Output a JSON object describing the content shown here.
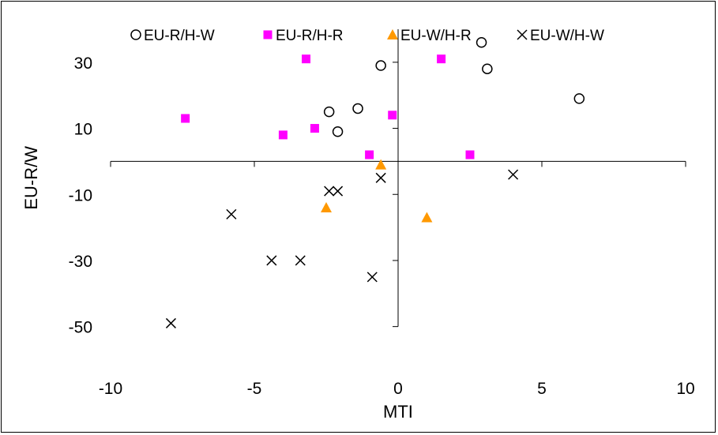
{
  "chart_data": {
    "type": "scatter",
    "title": "",
    "xlabel": "MTI",
    "ylabel": "EU-R/W",
    "xlim": [
      -10,
      10
    ],
    "ylim": [
      -50,
      40
    ],
    "x_ticks": [
      -10,
      -5,
      0,
      5,
      10
    ],
    "y_ticks": [
      30,
      10,
      -10,
      -30,
      -50
    ],
    "x_tick_labels": [
      "-10",
      "-5",
      "0",
      "5",
      "10"
    ],
    "y_tick_labels": [
      "30",
      "10",
      "-10",
      "-30",
      "-50"
    ],
    "grid": false,
    "legend_position": "top",
    "series": [
      {
        "name": "EU-R/H-W",
        "marker": "circle-open",
        "color": "#000000",
        "points": [
          [
            2.9,
            36
          ],
          [
            3.1,
            28
          ],
          [
            6.3,
            19
          ],
          [
            -0.6,
            29
          ],
          [
            -1.4,
            16
          ],
          [
            -2.4,
            15
          ],
          [
            -2.1,
            9
          ]
        ]
      },
      {
        "name": "EU-R/H-R",
        "marker": "square",
        "color": "#FF00FF",
        "points": [
          [
            -7.4,
            13
          ],
          [
            -3.2,
            31
          ],
          [
            -4,
            8
          ],
          [
            -2.9,
            10
          ],
          [
            -0.2,
            14
          ],
          [
            1.5,
            31
          ],
          [
            -1,
            2
          ],
          [
            2.5,
            2
          ]
        ]
      },
      {
        "name": "EU-W/H-R",
        "marker": "triangle",
        "color": "#FF9900",
        "points": [
          [
            -0.6,
            -1
          ],
          [
            -2.5,
            -14
          ],
          [
            1,
            -17
          ]
        ]
      },
      {
        "name": "EU-W/H-W",
        "marker": "x",
        "color": "#000000",
        "points": [
          [
            4,
            -4
          ],
          [
            -0.6,
            -5
          ],
          [
            -2.4,
            -9
          ],
          [
            -2.1,
            -9
          ],
          [
            -5.8,
            -16
          ],
          [
            -4.4,
            -30
          ],
          [
            -3.4,
            -30
          ],
          [
            -0.9,
            -35
          ],
          [
            -7.9,
            -49
          ]
        ]
      }
    ]
  }
}
